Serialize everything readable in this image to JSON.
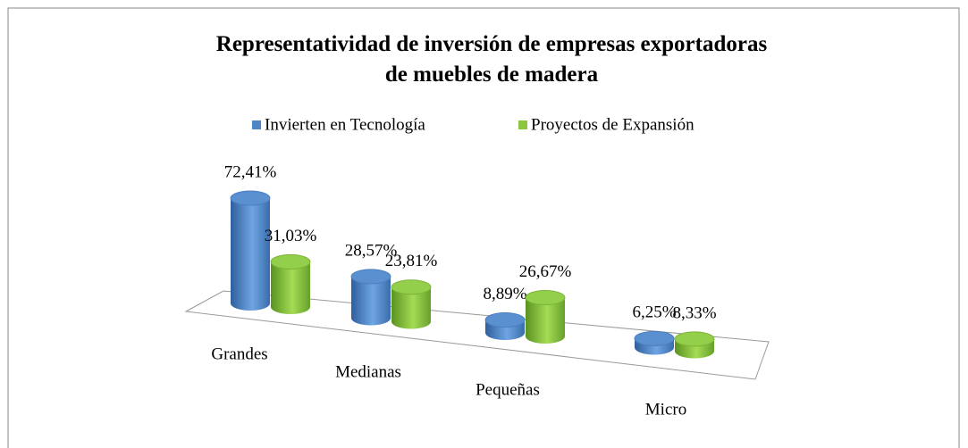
{
  "chart_data": {
    "type": "bar3d",
    "title": "Representatividad de inversión de empresas exportadoras de muebles de madera",
    "categories": [
      "Grandes",
      "Medianas",
      "Pequeñas",
      "Micro"
    ],
    "series": [
      {
        "name": "Invierten en Tecnología",
        "color": "#4f86c6",
        "values": [
          72.41,
          28.57,
          8.89,
          6.25
        ],
        "value_labels": [
          "72,41%",
          "28,57%",
          "8,89%",
          "6,25%"
        ]
      },
      {
        "name": "Proyectos de Expansión",
        "color": "#8cc63f",
        "values": [
          31.03,
          23.81,
          26.67,
          8.33
        ],
        "value_labels": [
          "31,03%",
          "23,81%",
          "26,67%",
          "8,33%"
        ]
      }
    ],
    "legend": "top"
  }
}
